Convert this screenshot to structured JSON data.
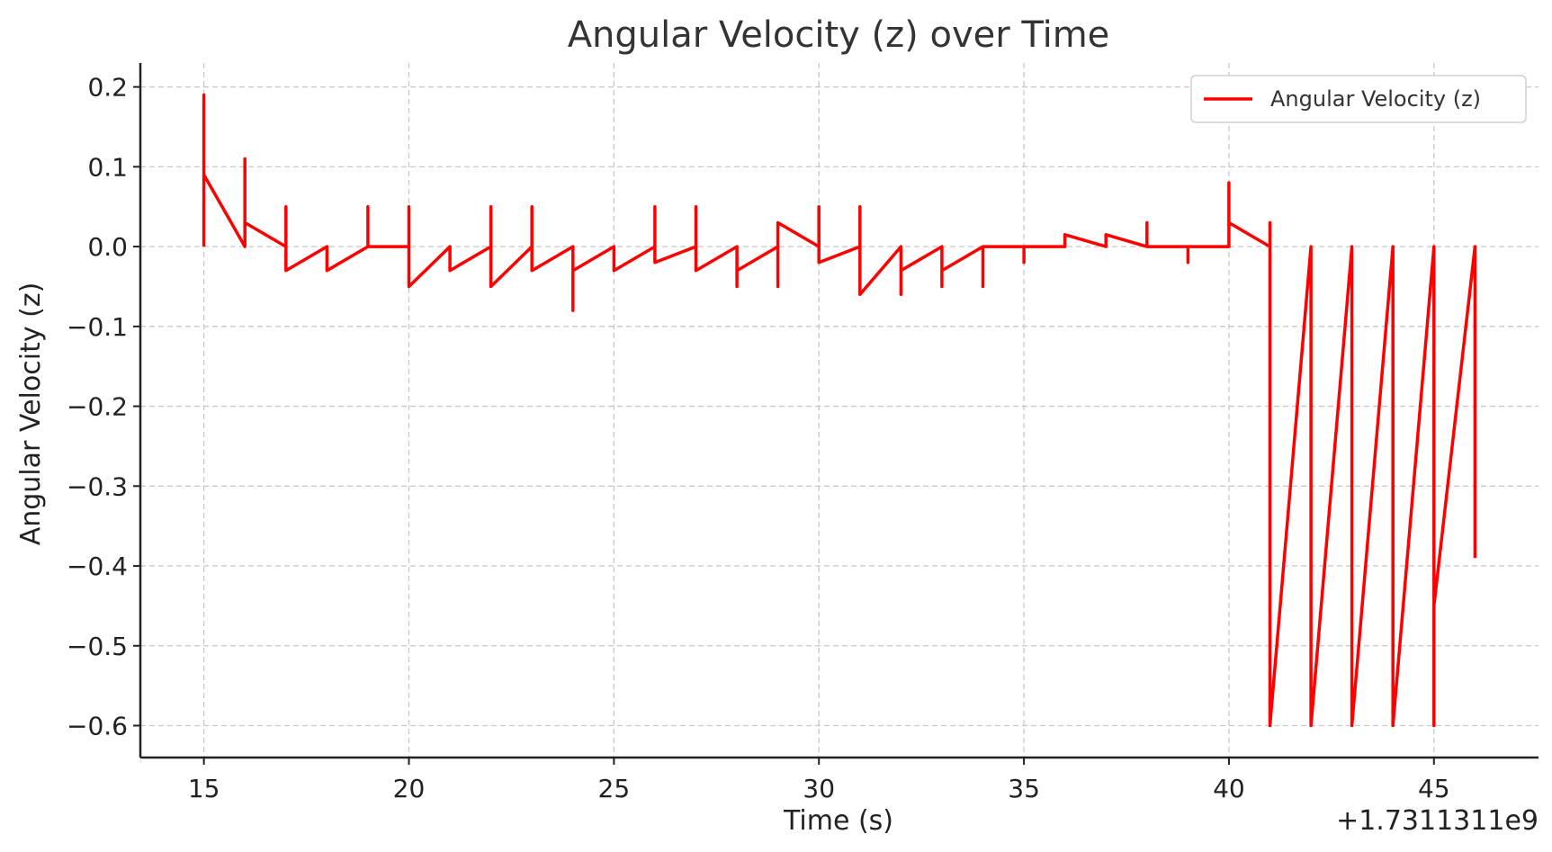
{
  "chart_data": {
    "type": "line",
    "title": "Angular Velocity (z) over Time",
    "xlabel": "Time (s)",
    "ylabel": "Angular Velocity (z)",
    "x_offset_label": "+1.7311311e9",
    "xlim": [
      13.45,
      47.55
    ],
    "ylim": [
      -0.64,
      0.23
    ],
    "x_ticks": [
      15,
      20,
      25,
      30,
      35,
      40,
      45
    ],
    "x_tick_labels": [
      "15",
      "20",
      "25",
      "30",
      "35",
      "40",
      "45"
    ],
    "y_ticks": [
      0.2,
      0.1,
      0.0,
      -0.1,
      -0.2,
      -0.3,
      -0.4,
      -0.5,
      -0.6
    ],
    "y_tick_labels": [
      "0.2",
      "0.1",
      "0.0",
      "−0.1",
      "−0.2",
      "−0.3",
      "−0.4",
      "−0.5",
      "−0.6"
    ],
    "grid": true,
    "legend_position": "top-right",
    "series": [
      {
        "name": "Angular Velocity (z)",
        "color": "#ff0000",
        "x": [
          15,
          15,
          15,
          15,
          16,
          16,
          16,
          17,
          17,
          17,
          18,
          18,
          19,
          19,
          19,
          20,
          20,
          20,
          21,
          21,
          22,
          22,
          22,
          23,
          23,
          23,
          24,
          24,
          24,
          25,
          25,
          26,
          26,
          26,
          27,
          27,
          27,
          28,
          28,
          28,
          29,
          29,
          29,
          30,
          30,
          30,
          31,
          31,
          31,
          32,
          32,
          32,
          33,
          33,
          33,
          34,
          34,
          34,
          35,
          35,
          35,
          36,
          36,
          37,
          37,
          38,
          38,
          38,
          39,
          39,
          39,
          40,
          40,
          40,
          41,
          41,
          41,
          41,
          42,
          42,
          43,
          43,
          44,
          44,
          45,
          45,
          45,
          46,
          46
        ],
        "y": [
          0.0,
          0.19,
          0.09,
          0.09,
          0.0,
          0.11,
          0.03,
          0.0,
          0.05,
          -0.03,
          0.0,
          -0.03,
          0.0,
          0.05,
          0.0,
          0.0,
          0.05,
          -0.05,
          0.0,
          -0.03,
          0.0,
          0.05,
          -0.05,
          0.0,
          0.05,
          -0.03,
          0.0,
          -0.08,
          -0.03,
          0.0,
          -0.03,
          0.0,
          0.05,
          -0.02,
          0.0,
          0.05,
          -0.03,
          0.0,
          -0.05,
          -0.03,
          0.0,
          -0.05,
          0.03,
          0.0,
          0.05,
          -0.02,
          0.0,
          0.05,
          -0.06,
          0.0,
          -0.06,
          -0.03,
          0.0,
          -0.05,
          -0.03,
          0.0,
          -0.05,
          0.0,
          0.0,
          -0.02,
          0.0,
          0.0,
          0.015,
          0.0,
          0.015,
          0.0,
          0.03,
          0.0,
          0.0,
          -0.02,
          0.0,
          0.0,
          0.08,
          0.03,
          0.0,
          0.03,
          -0.3,
          -0.6,
          0.0,
          -0.6,
          0.0,
          -0.6,
          0.0,
          -0.6,
          0.0,
          -0.6,
          -0.45,
          0.0,
          -0.39
        ]
      }
    ]
  }
}
